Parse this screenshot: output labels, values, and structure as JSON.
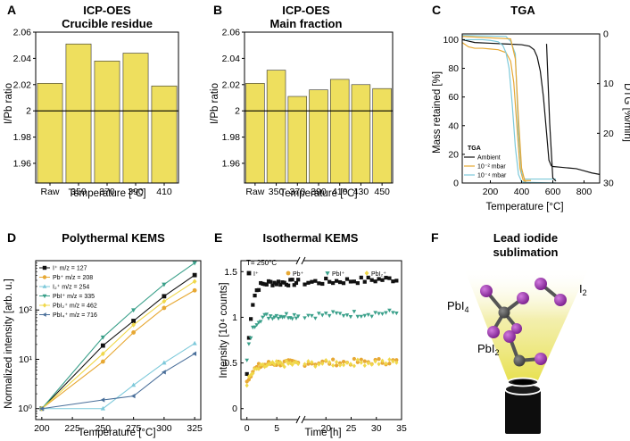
{
  "chart_data": [
    {
      "panel": "A",
      "type": "bar",
      "title": [
        "ICP-OES",
        "Crucible residue"
      ],
      "categories": [
        "Raw",
        "350",
        "370",
        "390",
        "410"
      ],
      "values": [
        2.021,
        2.051,
        2.038,
        2.044,
        2.019
      ],
      "reference_line": 2.0,
      "xlabel": "Temperature [°C]",
      "ylabel": "I/Pb ratio",
      "ylim": [
        1.945,
        2.06
      ],
      "yticks": [
        "1.96",
        "1.98",
        "2",
        "2.02",
        "2.04",
        "2.06"
      ],
      "bar_color": "#eedf5e"
    },
    {
      "panel": "B",
      "type": "bar",
      "title": [
        "ICP-OES",
        "Main fraction"
      ],
      "categories": [
        "Raw",
        "350",
        "370",
        "390",
        "410",
        "430",
        "450"
      ],
      "values": [
        2.021,
        2.031,
        2.011,
        2.016,
        2.024,
        2.02,
        2.017
      ],
      "reference_line": 2.0,
      "xlabel": "Temperature [°C]",
      "ylabel": "I/Pb ratio",
      "ylim": [
        1.945,
        2.06
      ],
      "yticks": [
        "1.96",
        "1.98",
        "2",
        "2.02",
        "2.04",
        "2.06"
      ],
      "bar_color": "#eedf5e"
    },
    {
      "panel": "C",
      "type": "line",
      "title": "TGA",
      "xlabel": "Temperature [°C]",
      "ylabel": "Mass retained [%]",
      "ylabel_right": "DTG [%/min]",
      "xlim": [
        20,
        900
      ],
      "ylim": [
        0,
        104
      ],
      "ylim_right": [
        30,
        0
      ],
      "xticks": [
        "200",
        "400",
        "600",
        "800"
      ],
      "yticks": [
        "0",
        "20",
        "40",
        "60",
        "80",
        "100"
      ],
      "yticks_right": [
        "0",
        "10",
        "20",
        "30"
      ],
      "legend_title": "TGA",
      "legend": [
        "Ambient",
        "10⁻² mbar",
        "10⁻⁴ mbar"
      ],
      "series": [
        {
          "name": "Ambient",
          "color": "#111111",
          "x": [
            20,
            100,
            200,
            300,
            400,
            450,
            480,
            500,
            520,
            540,
            560,
            575,
            590,
            600,
            650,
            700,
            750,
            800,
            850,
            900
          ],
          "y": [
            100,
            98,
            97.5,
            97,
            96.5,
            95.5,
            93,
            88,
            78,
            60,
            35,
            16,
            12,
            11.5,
            11,
            10.5,
            10,
            8.5,
            7,
            6
          ]
        },
        {
          "name": "10⁻² mbar",
          "color": "#e7a833",
          "x": [
            20,
            60,
            100,
            150,
            200,
            250,
            300,
            330,
            350,
            370,
            390,
            410,
            430,
            460
          ],
          "y": [
            98,
            95,
            94,
            94,
            93.5,
            93,
            91,
            85,
            70,
            40,
            10,
            2,
            0.5,
            0
          ]
        },
        {
          "name": "10⁻⁴ mbar",
          "color": "#7dc9da",
          "x": [
            20,
            100,
            150,
            200,
            250,
            280,
            300,
            320,
            340,
            360,
            380,
            400,
            420,
            620
          ],
          "y": [
            100,
            100,
            100,
            99.5,
            98.5,
            96,
            91,
            80,
            55,
            25,
            6,
            1,
            0.5,
            0
          ]
        },
        {
          "name": "DTG 10⁻⁴ mbar",
          "color": "#7dc9da",
          "x": [
            20,
            300,
            330,
            360,
            380,
            400,
            420,
            620
          ],
          "y": [
            0.3,
            0.5,
            1.5,
            4,
            20,
            28,
            29.2,
            29.2
          ]
        },
        {
          "name": "DTG 10⁻² mbar",
          "color": "#e7a833",
          "x": [
            20,
            330,
            360,
            380,
            400,
            420,
            460
          ],
          "y": [
            0.5,
            1,
            5,
            17,
            27,
            29.5,
            29.5
          ]
        },
        {
          "name": "DTG Ambient",
          "color": "#111111",
          "x": [
            560,
            580,
            600,
            620
          ],
          "y": [
            2,
            18,
            29,
            29.6
          ]
        }
      ]
    },
    {
      "panel": "D",
      "type": "line",
      "title": "Polythermal KEMS",
      "xlabel": "Temperature [°C]",
      "ylabel": "Normalized intensity [arb. u.]",
      "yscale": "log",
      "xlim": [
        195,
        330
      ],
      "ylim": [
        0.6,
        1000
      ],
      "xticks": [
        "200",
        "225",
        "250",
        "275",
        "300",
        "325"
      ],
      "yticks": [
        "10⁰",
        "10¹",
        "10²"
      ],
      "series": [
        {
          "name": "I⁺ m/z = 127",
          "color": "#111111",
          "marker": "square",
          "x": [
            200,
            250,
            275,
            300,
            325
          ],
          "y": [
            1,
            19,
            60,
            190,
            510
          ]
        },
        {
          "name": "Pb⁺ m/z = 208",
          "color": "#e7a833",
          "marker": "circle",
          "x": [
            200,
            250,
            275,
            300,
            325
          ],
          "y": [
            1,
            9,
            35,
            110,
            250
          ]
        },
        {
          "name": "I₂⁺ m/z = 254",
          "color": "#7dc9da",
          "marker": "triangle-up",
          "x": [
            200,
            250,
            275,
            300,
            325
          ],
          "y": [
            1,
            1,
            3,
            8.5,
            21
          ]
        },
        {
          "name": "PbI⁺ m/z = 335",
          "color": "#3aa08a",
          "marker": "triangle-down",
          "x": [
            200,
            250,
            275,
            300,
            325
          ],
          "y": [
            1,
            28,
            100,
            330,
            900
          ]
        },
        {
          "name": "PbI₂⁺ m/z = 462",
          "color": "#f0d84a",
          "marker": "diamond",
          "x": [
            200,
            250,
            275,
            300,
            325
          ],
          "y": [
            1,
            13,
            50,
            150,
            380
          ]
        },
        {
          "name": "PbI₄⁺ m/z = 716",
          "color": "#4a6f9a",
          "marker": "triangle-left",
          "x": [
            200,
            250,
            275,
            300,
            325
          ],
          "y": [
            1,
            1.5,
            1.8,
            5.5,
            13
          ]
        }
      ]
    },
    {
      "panel": "E",
      "type": "scatter",
      "title": "Isothermal KEMS",
      "annotation": "T= 250°C",
      "xlabel": "Time [h]",
      "ylabel": "Intensity [10⁴ counts]",
      "xlim_left": [
        -1,
        9
      ],
      "xlim_right": [
        15,
        35
      ],
      "xticks": [
        "0",
        "5",
        "20",
        "25",
        "30",
        "35"
      ],
      "ylim": [
        -0.12,
        1.62
      ],
      "yticks": [
        "0",
        "0.5",
        "1",
        "1.5"
      ],
      "legend": [
        "I⁺",
        "Pb⁺",
        "PbI⁺",
        "PbI₂⁺"
      ],
      "series": [
        {
          "name": "I⁺",
          "color": "#111111",
          "marker": "square",
          "start": 0.85,
          "end": 1.38,
          "rate": 1.5,
          "y0": 0.38
        },
        {
          "name": "Pb⁺",
          "color": "#e7a833",
          "marker": "circle",
          "start": 0.25,
          "end": 0.5,
          "rate": 0.8,
          "y0": 0.3
        },
        {
          "name": "PbI⁺",
          "color": "#3aa08a",
          "marker": "triangle-down",
          "start": 0.6,
          "end": 1.02,
          "rate": 1.2,
          "y0": 0.52
        },
        {
          "name": "PbI₂⁺",
          "color": "#f0d84a",
          "marker": "diamond",
          "start": 0.22,
          "end": 0.49,
          "rate": 0.7,
          "y0": 0.28
        }
      ]
    }
  ],
  "panels": {
    "a": "A",
    "b": "B",
    "c": "C",
    "d": "D",
    "e": "E",
    "f": "F"
  },
  "illustration": {
    "title": [
      "Lead iodide",
      "sublimation"
    ],
    "label_pbi4": "PbI",
    "label_pbi4_sub": "4",
    "label_i2": "I",
    "label_i2_sub": "2",
    "label_pbi2": "PbI",
    "label_pbi2_sub": "2"
  }
}
